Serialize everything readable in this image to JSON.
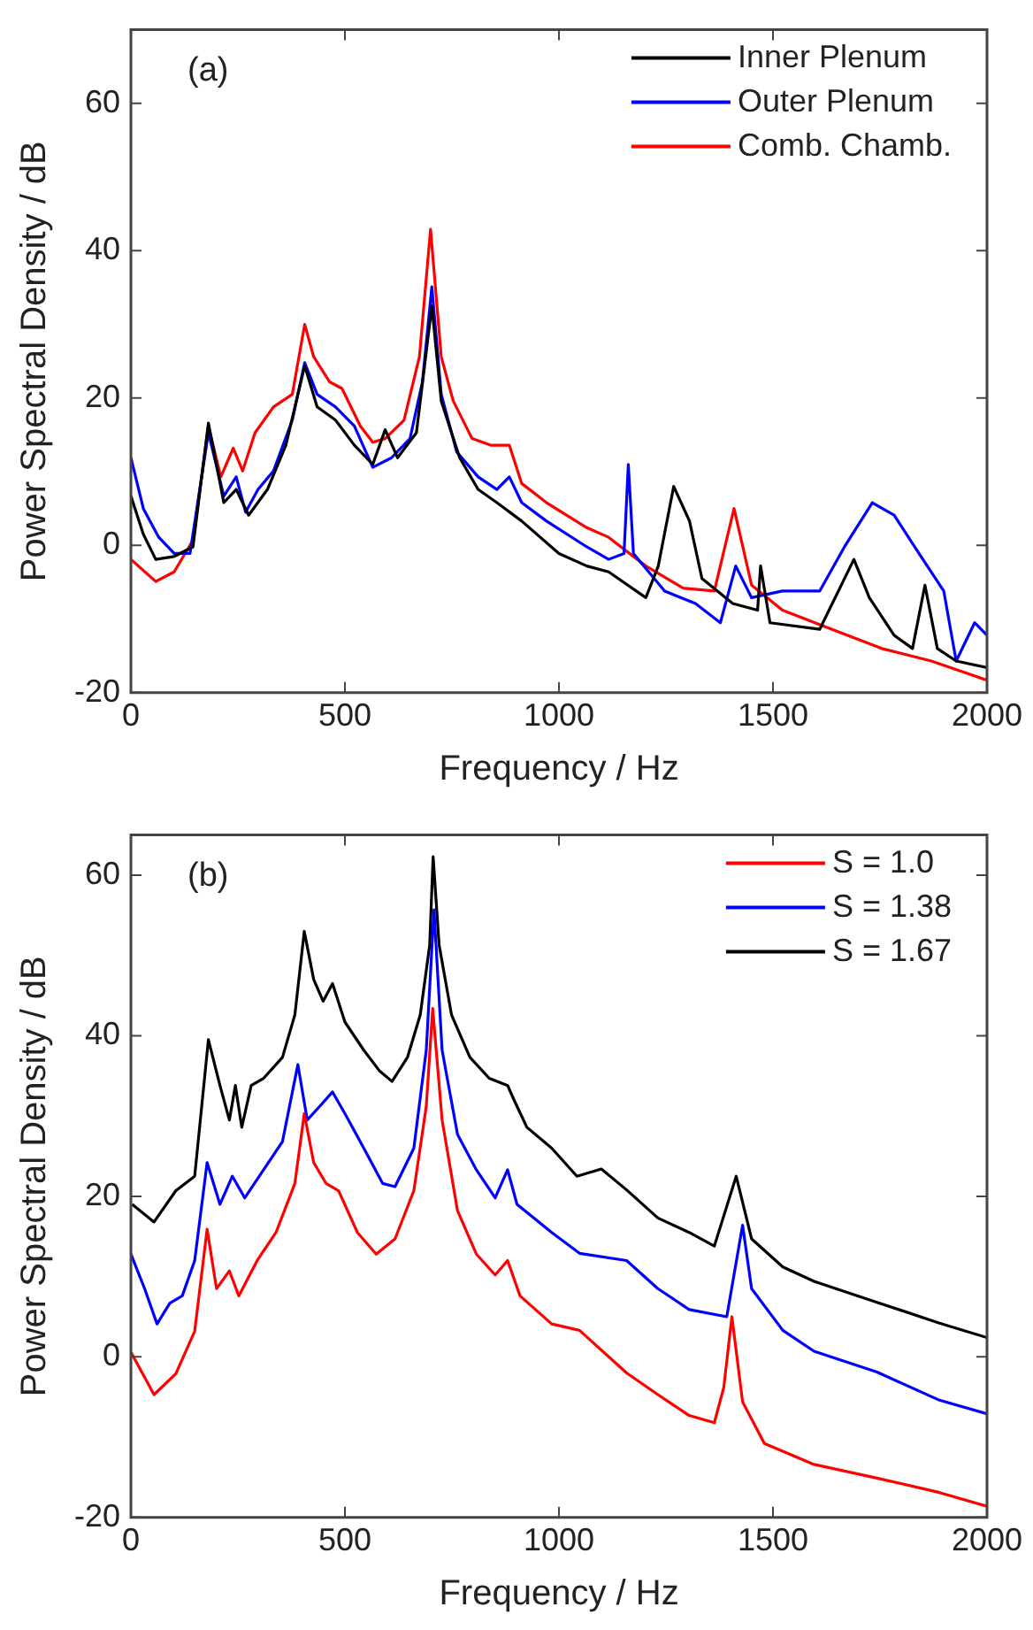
{
  "chart_data": [
    {
      "type": "line",
      "xlabel": "Frequency / Hz",
      "ylabel": "Power Spectral Density / dB",
      "annotations": [
        "(a)"
      ],
      "xlim": [
        0,
        2000
      ],
      "xticks": [
        0,
        500,
        1000,
        1500,
        2000
      ],
      "ylim": [
        -20,
        70
      ],
      "yticks": [
        -20,
        0,
        20,
        40,
        60
      ],
      "legend": "top right",
      "marker": "none",
      "line_style": "solid",
      "grid": false,
      "series": [
        {
          "name": "Inner Plenum",
          "color": "#000000",
          "x": [
            0,
            29,
            58,
            101,
            145,
            181,
            217,
            246,
            275,
            319,
            362,
            406,
            435,
            478,
            522,
            565,
            594,
            623,
            667,
            703,
            725,
            768,
            811,
            855,
            913,
            1000,
            1065,
            1116,
            1203,
            1232,
            1268,
            1305,
            1334,
            1406,
            1464,
            1471,
            1493,
            1609,
            1689,
            1725,
            1783,
            1826,
            1855,
            1884,
            1928,
            2000
          ],
          "values": [
            6.7,
            1.5,
            -1.9,
            -1.5,
            -0.2,
            16.6,
            5.8,
            7.6,
            4.1,
            7.6,
            13.6,
            24.4,
            18.8,
            17,
            13.6,
            11,
            15.7,
            11.9,
            15.3,
            32.5,
            19.6,
            11.9,
            7.6,
            5.8,
            3.3,
            -1.1,
            -2.8,
            -3.6,
            -7.1,
            -2.8,
            8,
            3.3,
            -4.5,
            -7.9,
            -8.8,
            -2.8,
            -10.5,
            -11.4,
            -1.9,
            -7.1,
            -12.2,
            -14,
            -5.4,
            -14,
            -15.7,
            -16.6
          ]
        },
        {
          "name": "Outer Plenum",
          "color": "#0000ff",
          "x": [
            0,
            29,
            65,
            101,
            138,
            181,
            217,
            246,
            268,
            297,
            333,
            377,
            406,
            435,
            478,
            522,
            565,
            609,
            652,
            681,
            703,
            725,
            761,
            811,
            855,
            884,
            913,
            971,
            1065,
            1116,
            1152,
            1162,
            1174,
            1247,
            1319,
            1377,
            1413,
            1450,
            1522,
            1609,
            1667,
            1732,
            1783,
            1841,
            1899,
            1928,
            1971,
            2000
          ],
          "values": [
            11.9,
            5,
            1.1,
            -1.1,
            -1.1,
            15.3,
            6.7,
            9.3,
            4.5,
            7.6,
            10.1,
            17,
            24.8,
            20.5,
            18.8,
            16.2,
            10.6,
            11.9,
            14.5,
            22.2,
            35.1,
            20.5,
            12.7,
            9.3,
            7.6,
            9.3,
            5.8,
            3.3,
            -0.2,
            -1.9,
            -1.1,
            11,
            -1.1,
            -6.2,
            -7.9,
            -10.5,
            -2.8,
            -7.1,
            -6.2,
            -6.2,
            -0.2,
            5.8,
            4.1,
            -1.1,
            -6.2,
            -15.7,
            -10.5,
            -12.2
          ]
        },
        {
          "name": "Comb. Chamb.",
          "color": "#ff0000",
          "x": [
            0,
            58,
            101,
            145,
            181,
            210,
            239,
            261,
            290,
            333,
            377,
            406,
            427,
            464,
            493,
            536,
            565,
            594,
            638,
            674,
            700,
            725,
            753,
            797,
            840,
            884,
            913,
            971,
            1065,
            1116,
            1203,
            1290,
            1363,
            1409,
            1450,
            1522,
            1638,
            1754,
            1870,
            2000
          ],
          "values": [
            -1.9,
            -4.9,
            -3.6,
            0.7,
            16.2,
            9.3,
            13.2,
            10.1,
            15.3,
            18.8,
            20.5,
            30,
            25.6,
            22.2,
            21.3,
            16.2,
            14,
            14.5,
            17,
            25.6,
            42.9,
            25.6,
            19.6,
            14.5,
            13.6,
            13.6,
            8.4,
            5.8,
            2.4,
            1.1,
            -2.8,
            -5.8,
            -6.2,
            5,
            -5.4,
            -8.8,
            -11.4,
            -14,
            -15.7,
            -18.3
          ]
        }
      ]
    },
    {
      "type": "line",
      "xlabel": "Frequency / Hz",
      "ylabel": "Power Spectral Density / dB",
      "annotations": [
        "(b)"
      ],
      "xlim": [
        0,
        2000
      ],
      "xticks": [
        0,
        500,
        1000,
        1500,
        2000
      ],
      "ylim": [
        -20,
        65
      ],
      "yticks": [
        -20,
        0,
        20,
        40,
        60
      ],
      "legend": "top right",
      "marker": "none",
      "line_style": "solid",
      "grid": false,
      "series": [
        {
          "name": "S = 1.0",
          "color": "#ff0000",
          "x": [
            0,
            54,
            105,
            149,
            178,
            200,
            230,
            252,
            295,
            339,
            383,
            405,
            427,
            456,
            485,
            529,
            573,
            617,
            661,
            690,
            705,
            727,
            763,
            807,
            851,
            880,
            909,
            983,
            1048,
            1158,
            1231,
            1304,
            1363,
            1385,
            1404,
            1429,
            1480,
            1596,
            1743,
            1889,
            2000
          ],
          "values": [
            0.6,
            -4.7,
            -2.1,
            3.2,
            15.9,
            8.5,
            10.7,
            7.6,
            12,
            15.5,
            21.6,
            30.3,
            24.2,
            21.6,
            20.7,
            15.5,
            12.8,
            14.7,
            20.7,
            31.2,
            43.4,
            29.5,
            18.2,
            12.8,
            10.2,
            12,
            7.6,
            4.1,
            3.3,
            -2,
            -4.7,
            -7.3,
            -8.2,
            -3.8,
            5,
            -5.6,
            -10.8,
            -13.4,
            -15.1,
            -16.9,
            -18.6
          ]
        },
        {
          "name": "S = 1.38",
          "color": "#0000ff",
          "x": [
            0,
            32,
            61,
            91,
            120,
            149,
            178,
            208,
            237,
            266,
            310,
            354,
            390,
            412,
            441,
            471,
            500,
            544,
            588,
            617,
            661,
            690,
            708,
            727,
            763,
            807,
            851,
            880,
            902,
            983,
            1048,
            1158,
            1231,
            1304,
            1392,
            1429,
            1450,
            1523,
            1596,
            1743,
            1889,
            2000
          ],
          "values": [
            12.8,
            8.5,
            4.1,
            6.7,
            7.6,
            12,
            24.2,
            19,
            22.5,
            19.8,
            23.3,
            26.8,
            36.4,
            29.5,
            31.2,
            33,
            30.3,
            26,
            21.6,
            21.2,
            26,
            38.2,
            55.7,
            38.2,
            27.7,
            23.3,
            19.8,
            23.3,
            19,
            15.5,
            12.9,
            12,
            8.5,
            5.9,
            5,
            16.4,
            8.5,
            3.3,
            0.7,
            -1.9,
            -5.4,
            -7.1
          ]
        },
        {
          "name": "S = 1.67",
          "color": "#000000",
          "x": [
            3,
            54,
            105,
            149,
            181,
            208,
            230,
            244,
            259,
            281,
            310,
            354,
            383,
            405,
            427,
            449,
            471,
            500,
            544,
            581,
            610,
            646,
            676,
            698,
            706,
            720,
            749,
            792,
            837,
            880,
            895,
            925,
            983,
            1042,
            1099,
            1158,
            1231,
            1304,
            1363,
            1414,
            1450,
            1523,
            1596,
            1743,
            1889,
            2000
          ],
          "values": [
            19,
            16.8,
            20.7,
            22.5,
            39.5,
            33.8,
            29.5,
            33.8,
            28.6,
            33.8,
            34.7,
            37.3,
            42.6,
            53,
            47,
            44.3,
            46.5,
            41.7,
            38.2,
            35.6,
            34.3,
            37.3,
            42.6,
            51.3,
            62.3,
            51.3,
            42.6,
            37.3,
            34.7,
            33.8,
            32,
            28.6,
            26,
            22.5,
            23.4,
            20.8,
            17.3,
            15.5,
            13.8,
            22.5,
            14.7,
            11.2,
            9.4,
            6.8,
            4.2,
            2.4
          ]
        }
      ]
    }
  ]
}
